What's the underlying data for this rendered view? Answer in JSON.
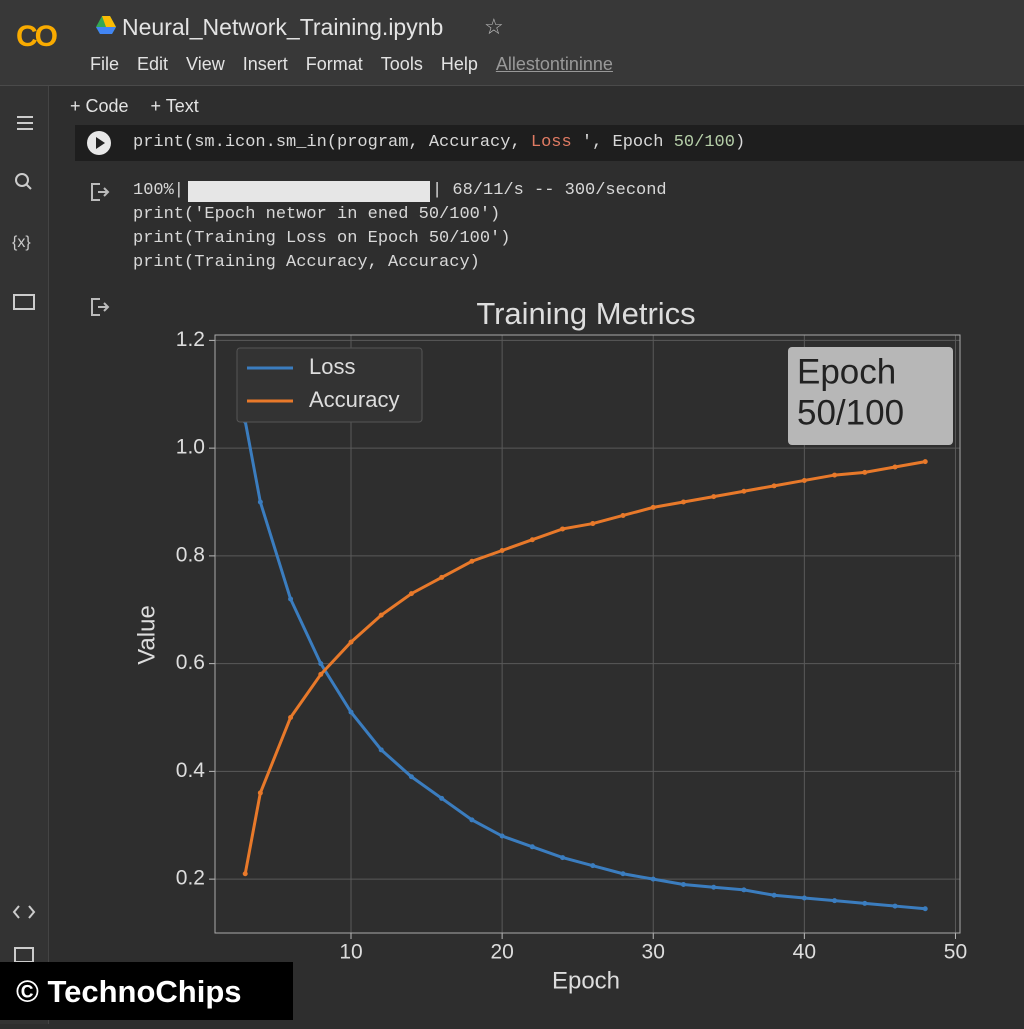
{
  "app": {
    "logo": "CO",
    "title": "Neural_Network_Training.ipynb",
    "star": "☆",
    "menu": [
      "File",
      "Edit",
      "View",
      "Insert",
      "Format",
      "Tools",
      "Help"
    ],
    "last_edit": "Allestontininne"
  },
  "toolbar": [
    "+ Code",
    "+ Text"
  ],
  "cell": {
    "code": [
      "print(sm.icon.sm_in(program, Accuracy, ",
      "Loss",
      " ', Epoch ",
      "50/100",
      ")"
    ],
    "output": {
      "progress_left": "100%|",
      "progress_right": "| 68/11/s -- 300/second",
      "lines": [
        "print('Epoch networ in ened 50/100')",
        "print(Training Loss on Epoch 50/100')",
        "print(Training Accuracy, Accuracy)"
      ]
    }
  },
  "chart_data": {
    "type": "line",
    "title": "Training Metrics",
    "x_label": "Epoch",
    "y_label": "Value",
    "x": [
      3,
      4,
      6,
      8,
      10,
      12,
      14,
      16,
      18,
      20,
      22,
      24,
      26,
      28,
      30,
      32,
      34,
      36,
      38,
      40,
      42,
      44,
      46,
      48
    ],
    "series": [
      {
        "name": "Loss",
        "color": "#3b7dbf",
        "values": [
          1.05,
          0.9,
          0.72,
          0.6,
          0.51,
          0.44,
          0.39,
          0.35,
          0.31,
          0.28,
          0.26,
          0.24,
          0.225,
          0.21,
          0.2,
          0.19,
          0.185,
          0.18,
          0.17,
          0.165,
          0.16,
          0.155,
          0.15,
          0.145
        ]
      },
      {
        "name": "Accuracy",
        "color": "#e8792a",
        "values": [
          0.21,
          0.36,
          0.5,
          0.58,
          0.64,
          0.69,
          0.73,
          0.76,
          0.79,
          0.81,
          0.83,
          0.85,
          0.86,
          0.875,
          0.89,
          0.9,
          0.91,
          0.92,
          0.93,
          0.94,
          0.95,
          0.955,
          0.965,
          0.975
        ]
      }
    ],
    "xlim": [
      1,
      50.3
    ],
    "ylim": [
      0.1,
      1.21
    ],
    "xticks": [
      10,
      20,
      30,
      40,
      50
    ],
    "yticks": [
      0.2,
      0.4,
      0.6,
      0.8,
      {
        "value": 1,
        "label": "1.0"
      },
      1.2
    ],
    "grid": true,
    "legend": "upper-left",
    "annotation": [
      "Epoch",
      "50/100"
    ]
  },
  "watermark": "© TechnoChips"
}
